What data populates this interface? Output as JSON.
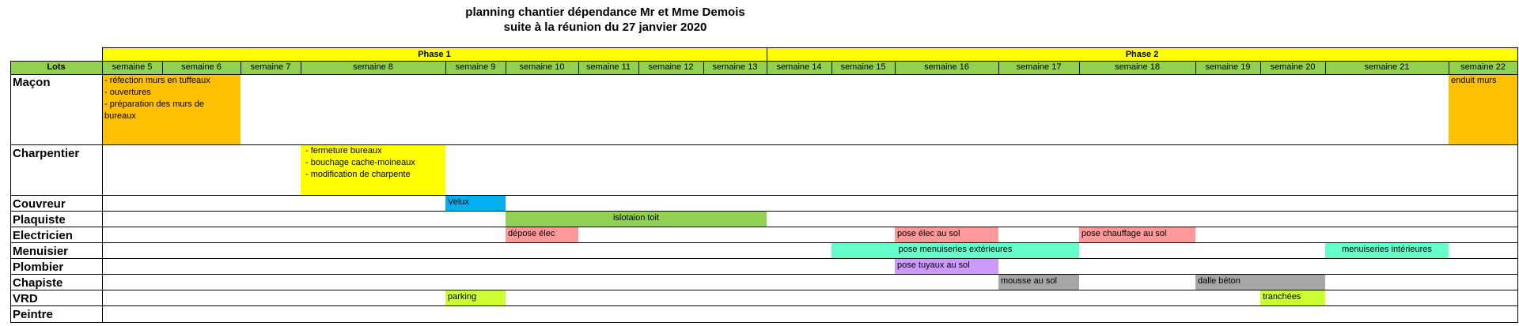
{
  "title": {
    "line1": "planning chantier dépendance Mr et Mme Demois",
    "line2": "suite à la réunion du 27 janvier 2020"
  },
  "header": {
    "lots_label": "Lots",
    "phases": [
      "Phase 1",
      "Phase 2"
    ],
    "weeks": [
      "semaine 5",
      "semaine 6",
      "semaine 7",
      "semaine 8",
      "semaine 9",
      "semaine 10",
      "semaine 11",
      "semaine 12",
      "semaine 13",
      "semaine 14",
      "semaine 15",
      "semaine 16",
      "semaine 17",
      "semaine 18",
      "semaine 19",
      "semaine 20",
      "semaine 21",
      "semaine 22"
    ]
  },
  "lots": [
    "Maçon",
    "Charpentier",
    "Couvreur",
    "Plaquiste",
    "Electricien",
    "Menuisier",
    "Plombier",
    "Chapiste",
    "VRD",
    "Peintre"
  ],
  "tasks": {
    "macon_1": [
      "- réfection murs en tuffeaux",
      "- ouvertures",
      "- préparation des murs de",
      "bureaux"
    ],
    "macon_2": "enduit murs",
    "charpentier_1": [
      "- fermeture bureaux",
      "- bouchage cache-moineaux",
      "- modification de charpente"
    ],
    "couvreur_1": "Velux",
    "plaquiste_1": "islotaion toit",
    "electricien_1": "dépose élec",
    "electricien_2": "pose élec au sol",
    "electricien_3": "pose chauffage au sol",
    "menuisier_1": "pose menuiseries extérieures",
    "menuisier_2": "menuiseries intérieures",
    "plombier_1": "pose tuyaux au sol",
    "chapiste_1": "mousse au sol",
    "chapiste_2": "dalle béton",
    "vrd_1": "parking",
    "vrd_2": "tranchées"
  },
  "colors": {
    "phase": "#ffff00",
    "header_green": "#92d050",
    "macon": "#ffc000",
    "charpentier": "#ffff00",
    "couvreur": "#00b0f0",
    "plaquiste": "#92d050",
    "electricien": "#ff9999",
    "menuisier": "#66ffcc",
    "plombier": "#cc99ff",
    "chapiste": "#a6a6a6",
    "vrd": "#ccff33"
  }
}
